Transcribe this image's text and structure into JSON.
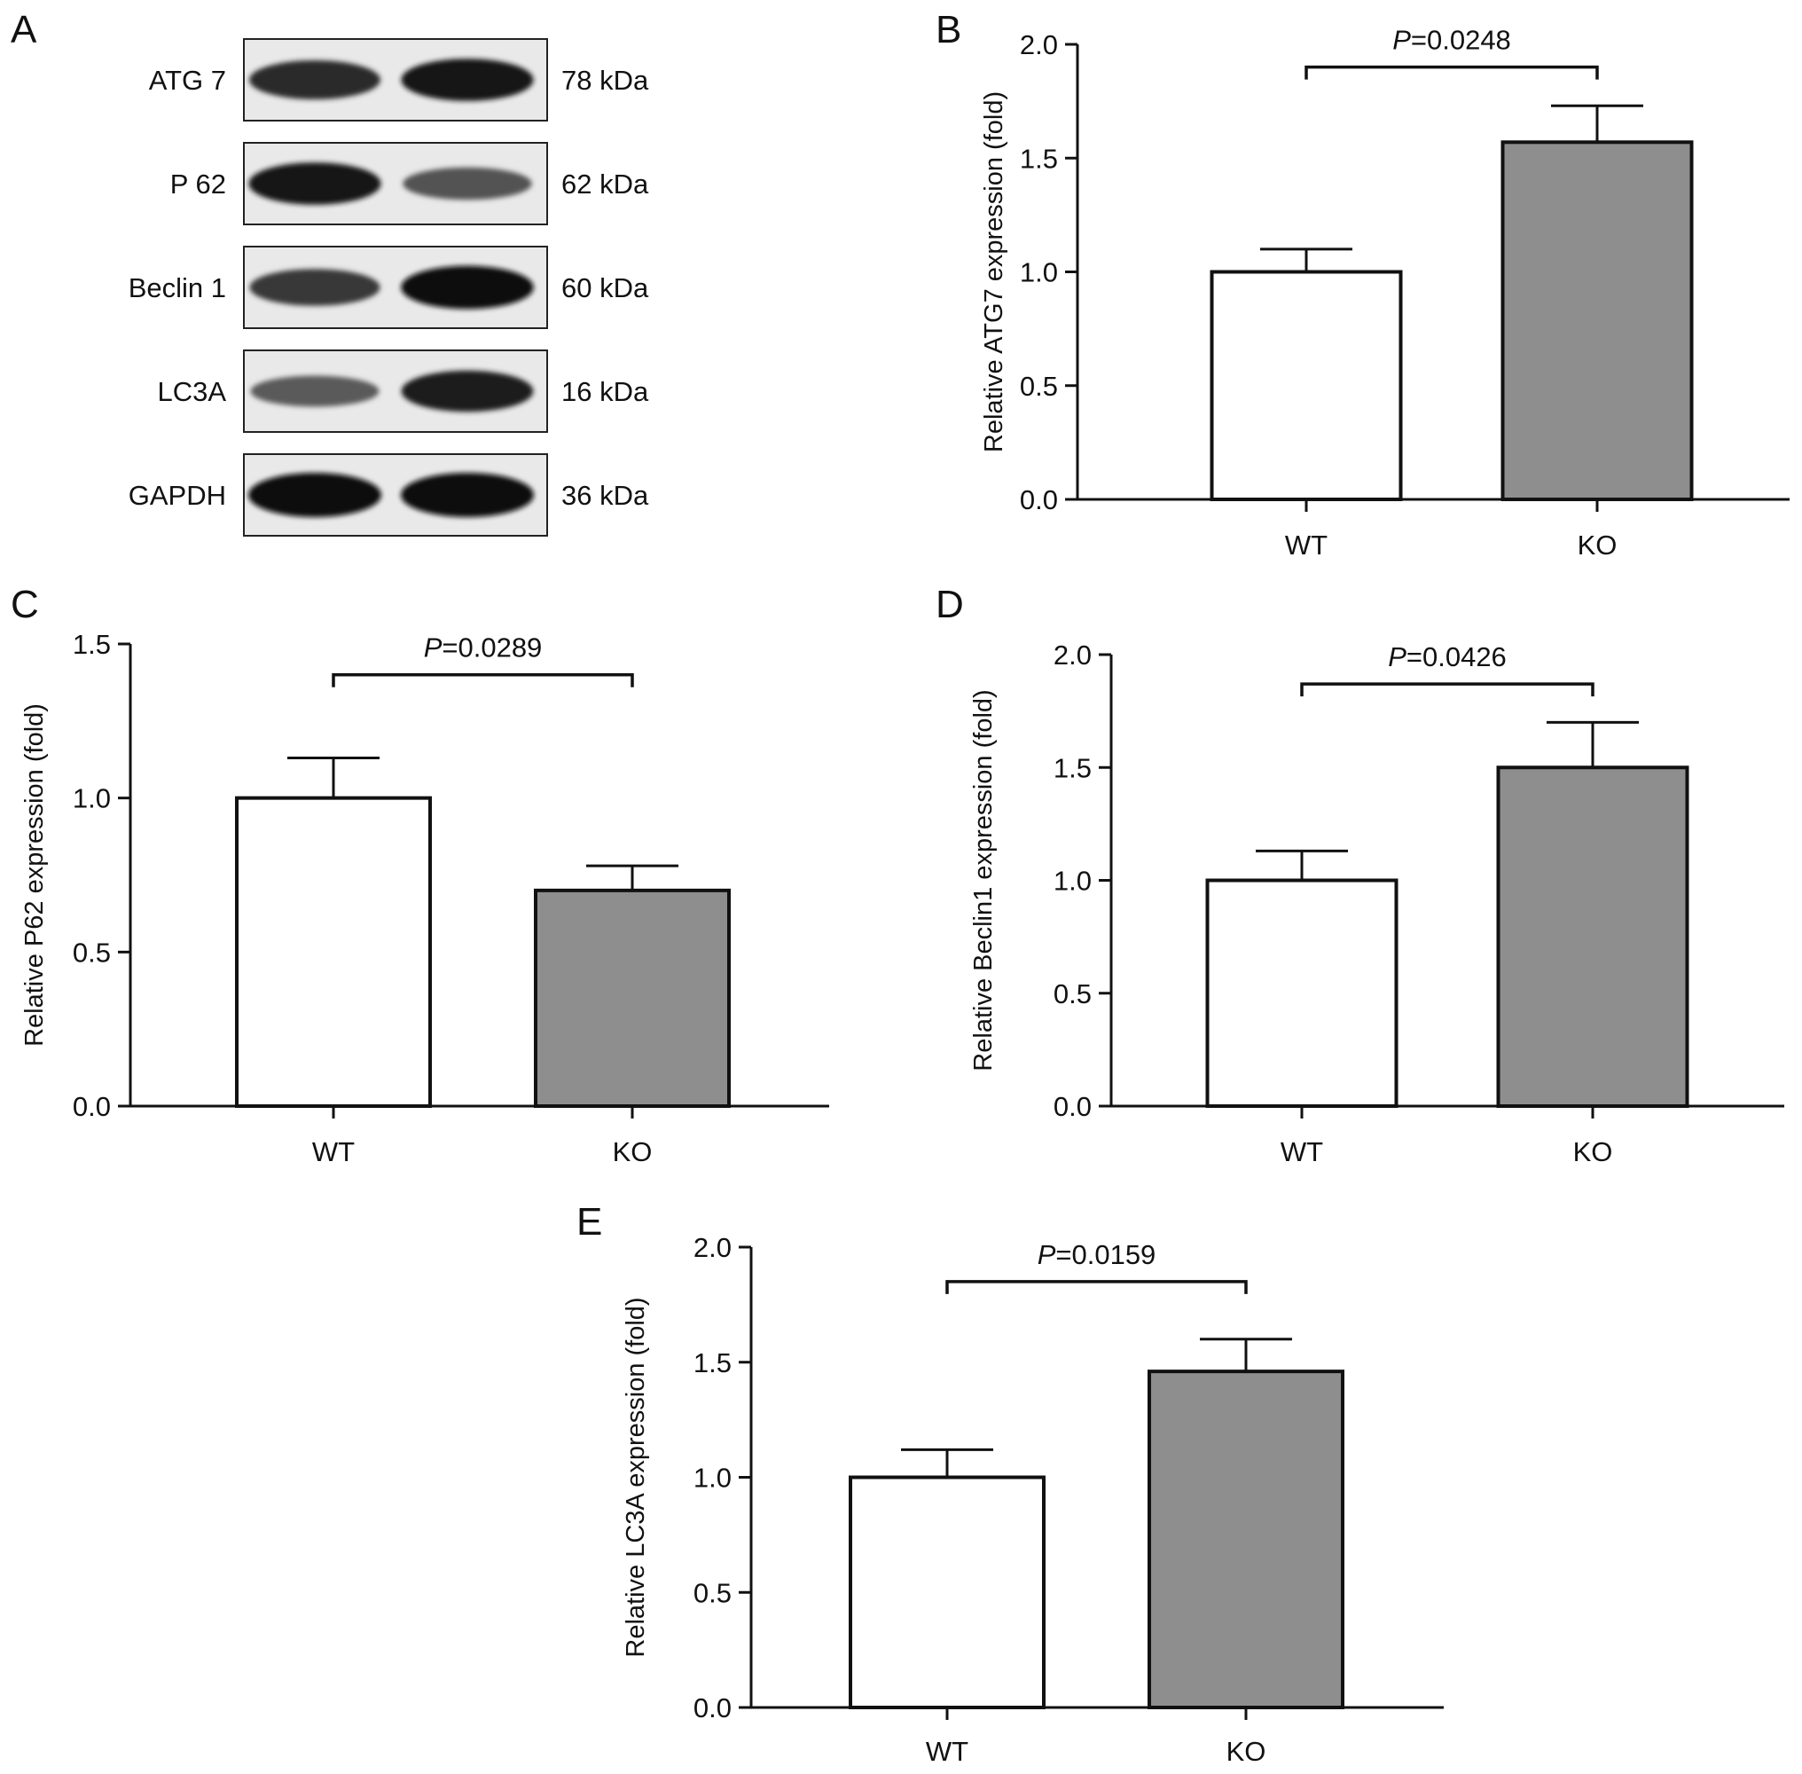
{
  "blot": {
    "letter": "A",
    "rows": [
      {
        "protein": "ATG 7",
        "size": "78 kDa",
        "band_intensity": [
          0.8,
          0.92
        ]
      },
      {
        "protein": "P 62",
        "size": "62 kDa",
        "band_intensity": [
          0.92,
          0.55
        ]
      },
      {
        "protein": "Beclin 1",
        "size": "60 kDa",
        "band_intensity": [
          0.72,
          0.96
        ]
      },
      {
        "protein": "LC3A",
        "size": "16 kDa",
        "band_intensity": [
          0.5,
          0.88
        ]
      },
      {
        "protein": "GAPDH",
        "size": "36 kDa",
        "band_intensity": [
          1.0,
          1.0
        ]
      }
    ]
  },
  "colors": {
    "wt_bar": "#ffffff",
    "ko_bar": "#8e8e8e",
    "axis": "#111111"
  },
  "chart_data": [
    {
      "panel": "B",
      "type": "bar",
      "categories": [
        "WT",
        "KO"
      ],
      "values": [
        1.0,
        1.57
      ],
      "errors": [
        0.1,
        0.16
      ],
      "ylabel": "Relative ATG7 expression (fold)",
      "ylim": [
        0,
        2.0
      ],
      "yticks": [
        "0.0",
        "0.5",
        "1.0",
        "1.5",
        "2.0"
      ],
      "pvalue_prefix": "P",
      "pvalue_text": "=0.0248",
      "bracket_at": 1.9
    },
    {
      "panel": "C",
      "type": "bar",
      "categories": [
        "WT",
        "KO"
      ],
      "values": [
        1.0,
        0.7
      ],
      "errors": [
        0.13,
        0.08
      ],
      "ylabel": "Relative P62 expression (fold)",
      "ylim": [
        0,
        1.5
      ],
      "yticks": [
        "0.0",
        "0.5",
        "1.0",
        "1.5"
      ],
      "pvalue_prefix": "P",
      "pvalue_text": "=0.0289",
      "bracket_at": 1.4
    },
    {
      "panel": "D",
      "type": "bar",
      "categories": [
        "WT",
        "KO"
      ],
      "values": [
        1.0,
        1.5
      ],
      "errors": [
        0.13,
        0.2
      ],
      "ylabel": "Relative Beclin1 expression (fold)",
      "ylim": [
        0,
        2.0
      ],
      "yticks": [
        "0.0",
        "0.5",
        "1.0",
        "1.5",
        "2.0"
      ],
      "pvalue_prefix": "P",
      "pvalue_text": "=0.0426",
      "bracket_at": 1.87
    },
    {
      "panel": "E",
      "type": "bar",
      "categories": [
        "WT",
        "KO"
      ],
      "values": [
        1.0,
        1.46
      ],
      "errors": [
        0.12,
        0.14
      ],
      "ylabel": "Relative LC3A expression (fold)",
      "ylim": [
        0,
        2.0
      ],
      "yticks": [
        "0.0",
        "0.5",
        "1.0",
        "1.5",
        "2.0"
      ],
      "pvalue_prefix": "P",
      "pvalue_text": "=0.0159",
      "bracket_at": 1.85
    }
  ]
}
